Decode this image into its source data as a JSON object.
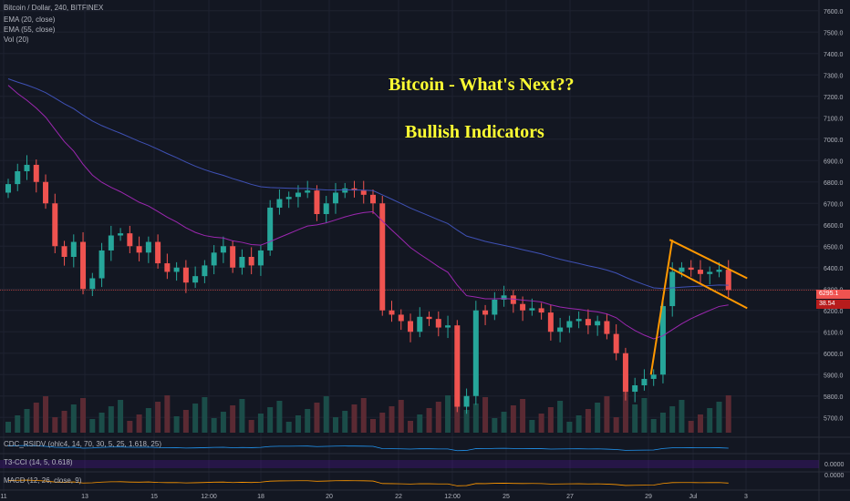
{
  "header": {
    "symbol_line": "Bitcoin / Dollar, 240, BITFINEX",
    "indicators": [
      "EMA (20, close)",
      "EMA (55, close)",
      "Vol (20)"
    ]
  },
  "annotations": {
    "title": "Bitcoin - What's Next??",
    "subtitle": "Bullish Indicators"
  },
  "price_tags": {
    "last_price": "6295.1",
    "secondary": "38.54"
  },
  "panes": {
    "rsi_label": "CDC_RSIDV (ohlc4, 14, 70, 30, 5, 25, 1.618, 25)",
    "cci_label": "T3-CCI (14, 5, 0.618)",
    "macd_label": "MACD (12, 26, close, 9)",
    "cci_value": "0.0000",
    "macd_value": "0.0000"
  },
  "colors": {
    "background": "#131722",
    "up": "#26a69a",
    "down": "#ef5350",
    "ema20": "#9c27b0",
    "ema55": "#3f51b5",
    "pattern": "#ff9800",
    "annotation_text": "#ffff33",
    "price_line": "#ef5350"
  },
  "chart_data": {
    "type": "candlestick",
    "y_ticks": [
      5700,
      5800,
      5900,
      6000,
      6100,
      6200,
      6300,
      6400,
      6500,
      6600,
      6700,
      6800,
      6900,
      7000,
      7100,
      7200,
      7300,
      7400,
      7500,
      7600
    ],
    "ylim": [
      5650,
      7650
    ],
    "x_ticks": [
      "11",
      "13",
      "15",
      "12:00",
      "18",
      "20",
      "22",
      "12:00",
      "25",
      "27",
      "29",
      "Jul",
      "3"
    ],
    "last_price": 6295.1,
    "candles_close": [
      6790,
      6850,
      6880,
      6800,
      6700,
      6500,
      6450,
      6520,
      6300,
      6350,
      6480,
      6550,
      6560,
      6500,
      6470,
      6520,
      6420,
      6380,
      6400,
      6330,
      6360,
      6410,
      6470,
      6500,
      6400,
      6450,
      6410,
      6480,
      6680,
      6720,
      6730,
      6750,
      6760,
      6650,
      6700,
      6750,
      6770,
      6760,
      6740,
      6700,
      6200,
      6180,
      6150,
      6100,
      6170,
      6160,
      6120,
      6130,
      5750,
      5800,
      6200,
      6180,
      6250,
      6270,
      6230,
      6200,
      6210,
      6190,
      6100,
      6120,
      6150,
      6160,
      6130,
      6150,
      6090,
      6000,
      5820,
      5850,
      5880,
      5900,
      6220,
      6380,
      6400,
      6390,
      6370,
      6380,
      6390,
      6295
    ],
    "pattern_lines": [
      {
        "name": "pennant-top",
        "from": [
          71,
          6530
        ],
        "to": [
          79,
          6350
        ]
      },
      {
        "name": "pennant-bottom",
        "from": [
          71,
          6400
        ],
        "to": [
          79,
          6210
        ]
      },
      {
        "name": "pole",
        "from": [
          69,
          5900
        ],
        "to": [
          71,
          6530
        ]
      }
    ]
  }
}
